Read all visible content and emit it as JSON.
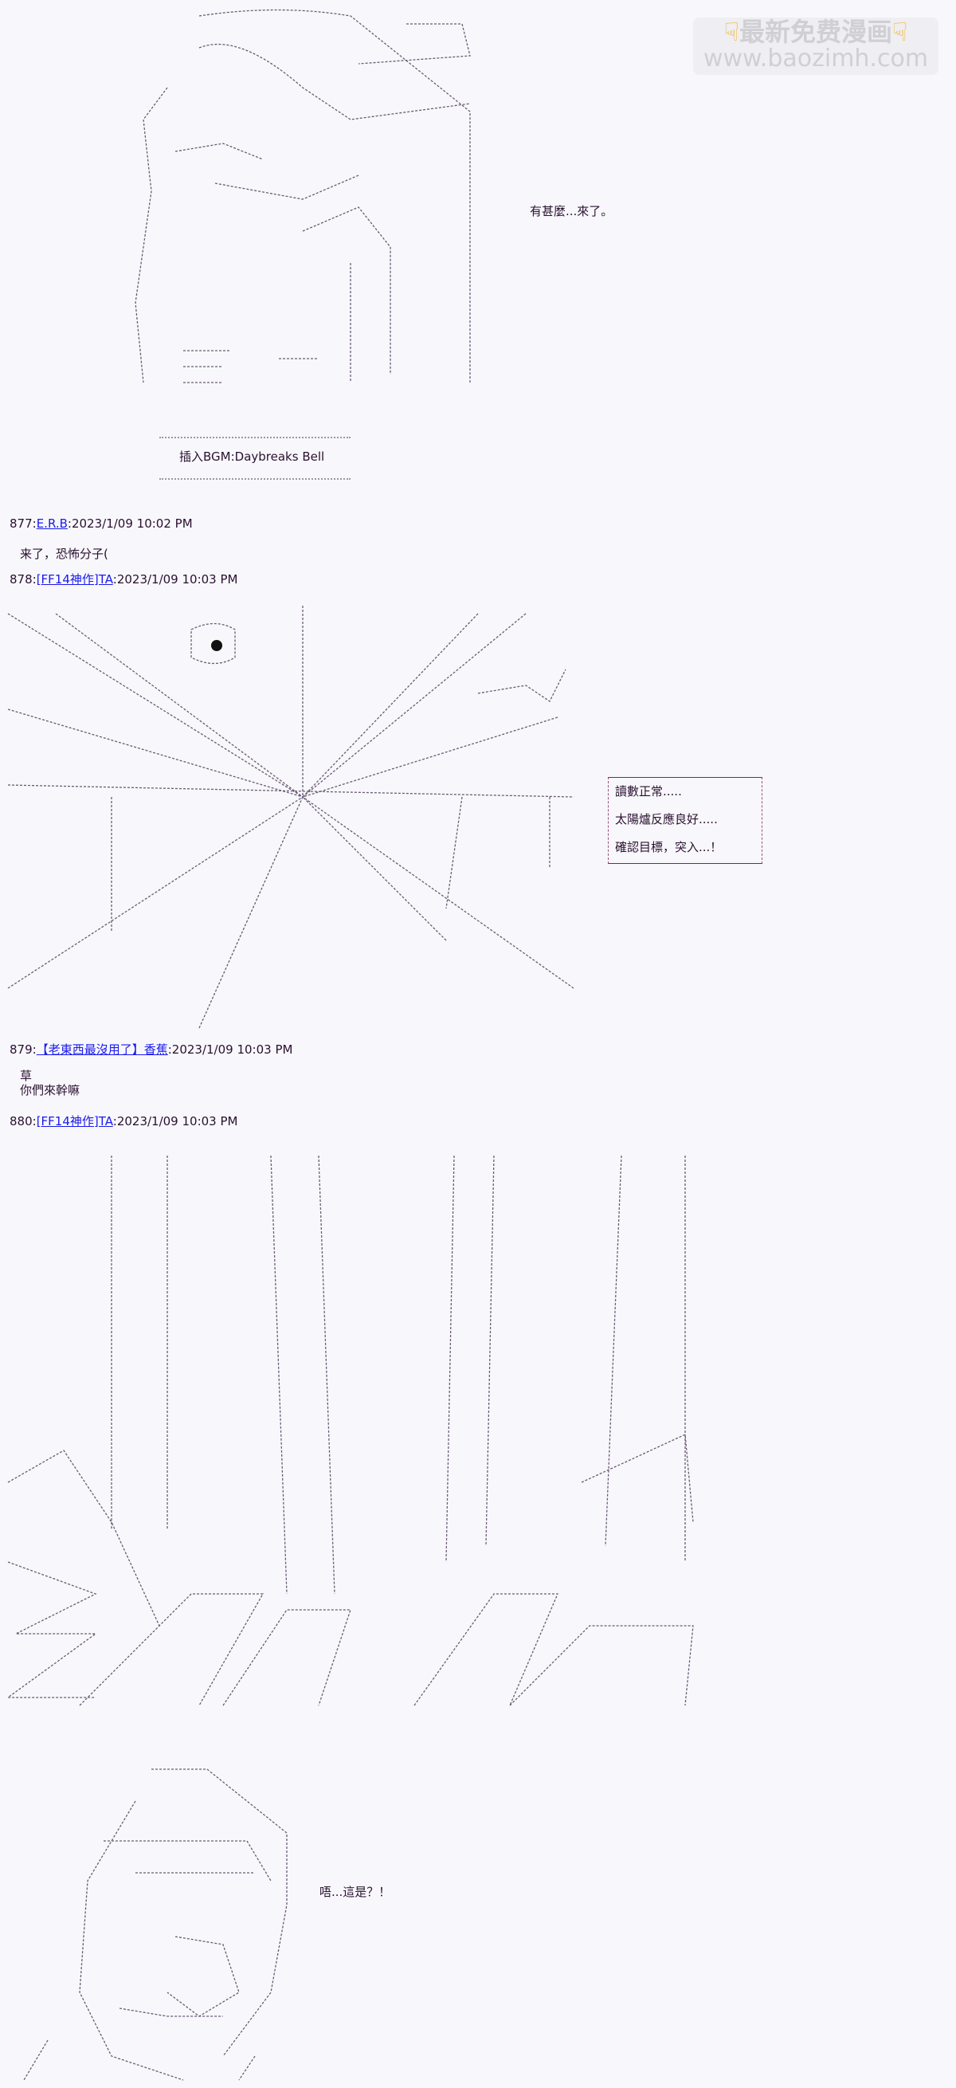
{
  "watermark": {
    "line1": "最新免费漫画",
    "line2": "www.baozimh.com",
    "icon": "pointing-down-hand-icon"
  },
  "art1": {
    "speech": "有甚麼...來了。"
  },
  "bgm_box": {
    "text": "插入BGM:Daybreaks Bell"
  },
  "posts": [
    {
      "number": "877",
      "author": "E.R.B",
      "timestamp": "2023/1/09 10:02 PM",
      "body": [
        "来了，恐怖分子("
      ]
    },
    {
      "number": "878",
      "author": "[FF14神作]TA",
      "timestamp": "2023/1/09 10:03 PM",
      "body": []
    },
    {
      "number": "879",
      "author": "【老東西最沒用了】香蕉",
      "timestamp": "2023/1/09 10:03 PM",
      "body": [
        "草",
        "你們來幹嘛"
      ]
    },
    {
      "number": "880",
      "author": "[FF14神作]TA",
      "timestamp": "2023/1/09 10:03 PM",
      "body": []
    }
  ],
  "status_box": {
    "lines": [
      "讀數正常.....",
      "太陽爐反應良好.....",
      "確認目標，突入...！"
    ]
  },
  "art4": {
    "speech": "唔...這是？！"
  },
  "colors": {
    "link": "#1a1aee",
    "text": "#2a1030",
    "background": "#f8f8fc"
  }
}
